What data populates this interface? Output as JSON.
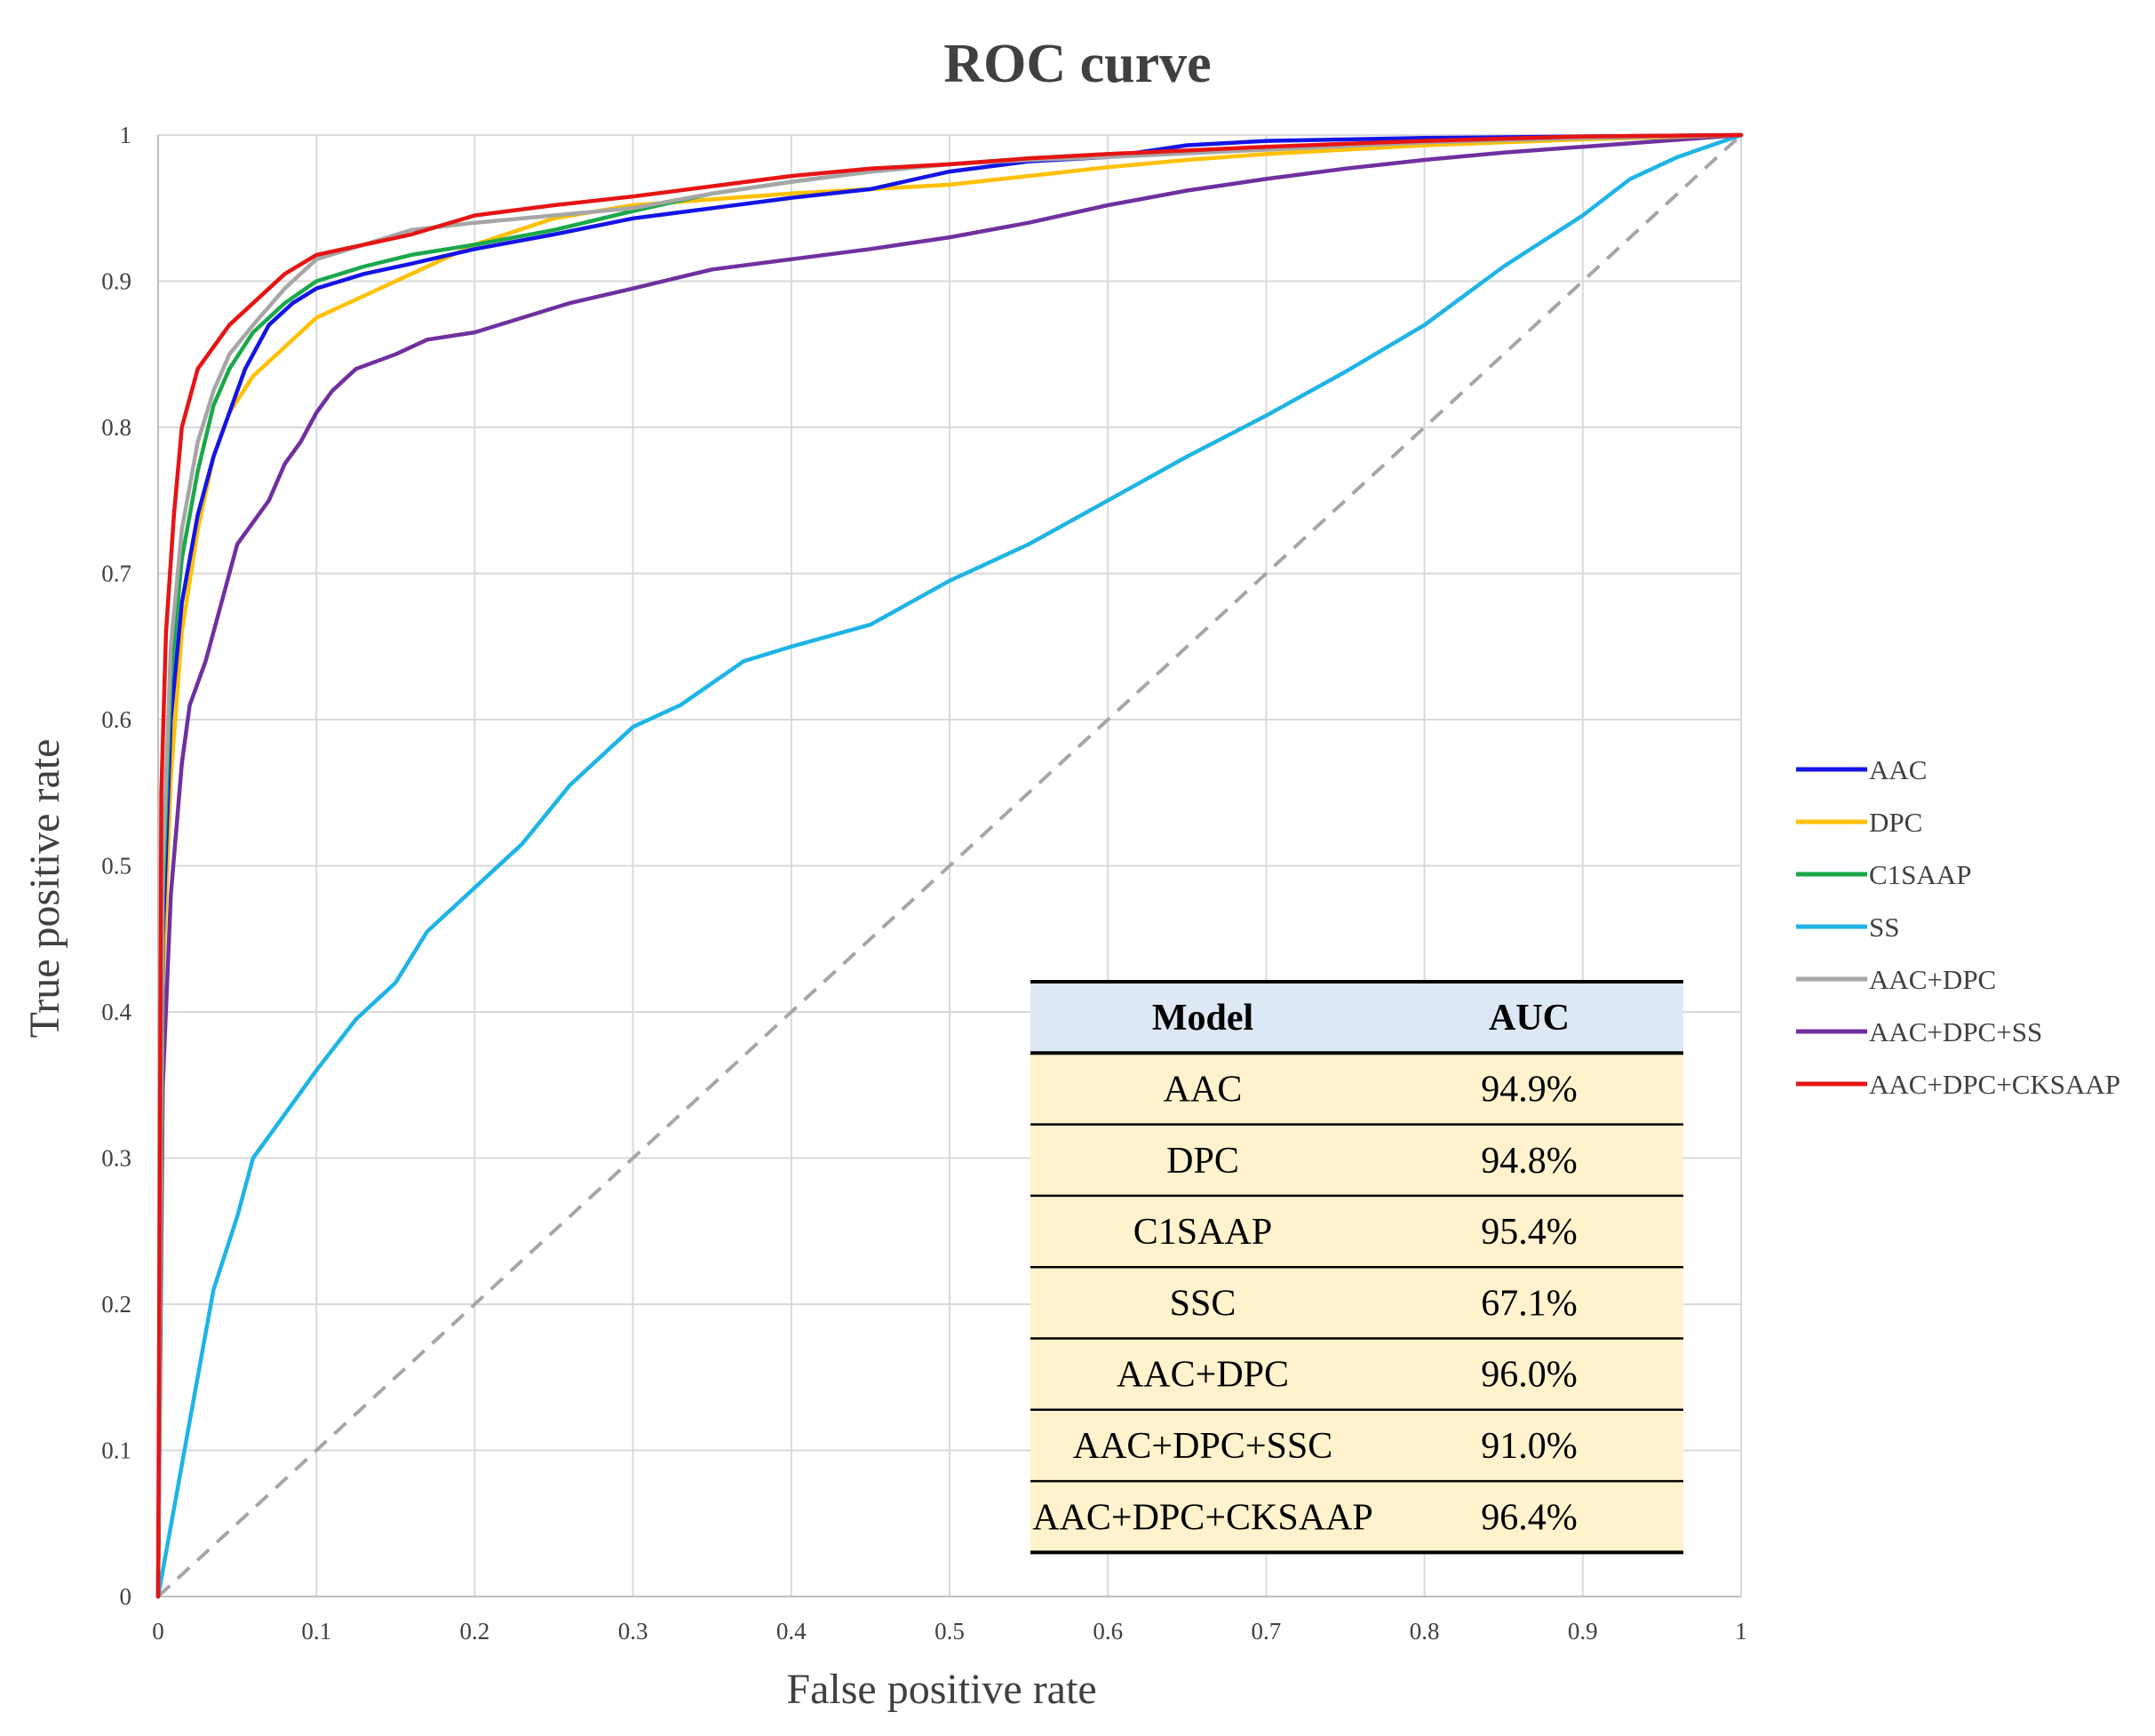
{
  "chart_data": {
    "type": "line",
    "title": "ROC curve",
    "xlabel": "False positive rate",
    "ylabel": "True positive rate",
    "xlim": [
      0,
      1
    ],
    "ylim": [
      0,
      1
    ],
    "grid": true,
    "legend_position": "right",
    "x_ticks": [
      "0",
      "0.1",
      "0.2",
      "0.3",
      "0.4",
      "0.5",
      "0.6",
      "0.7",
      "0.8",
      "0.9",
      "1"
    ],
    "y_ticks": [
      "0",
      "0.1",
      "0.2",
      "0.3",
      "0.4",
      "0.5",
      "0.6",
      "0.7",
      "0.8",
      "0.9",
      "1"
    ],
    "series": [
      {
        "name": "AAC",
        "color": "#1414e6",
        "points": [
          [
            0,
            0
          ],
          [
            0.003,
            0.45
          ],
          [
            0.008,
            0.6
          ],
          [
            0.015,
            0.68
          ],
          [
            0.025,
            0.74
          ],
          [
            0.035,
            0.78
          ],
          [
            0.045,
            0.81
          ],
          [
            0.055,
            0.84
          ],
          [
            0.07,
            0.87
          ],
          [
            0.085,
            0.885
          ],
          [
            0.1,
            0.895
          ],
          [
            0.13,
            0.905
          ],
          [
            0.16,
            0.912
          ],
          [
            0.2,
            0.922
          ],
          [
            0.25,
            0.932
          ],
          [
            0.3,
            0.943
          ],
          [
            0.35,
            0.95
          ],
          [
            0.4,
            0.957
          ],
          [
            0.45,
            0.963
          ],
          [
            0.5,
            0.975
          ],
          [
            0.55,
            0.982
          ],
          [
            0.6,
            0.985
          ],
          [
            0.65,
            0.993
          ],
          [
            0.7,
            0.996
          ],
          [
            0.8,
            0.998
          ],
          [
            0.9,
            0.999
          ],
          [
            1,
            1
          ]
        ]
      },
      {
        "name": "DPC",
        "color": "#ffc000",
        "points": [
          [
            0,
            0
          ],
          [
            0.003,
            0.42
          ],
          [
            0.008,
            0.56
          ],
          [
            0.015,
            0.66
          ],
          [
            0.025,
            0.73
          ],
          [
            0.035,
            0.78
          ],
          [
            0.045,
            0.81
          ],
          [
            0.06,
            0.835
          ],
          [
            0.08,
            0.855
          ],
          [
            0.1,
            0.875
          ],
          [
            0.13,
            0.89
          ],
          [
            0.16,
            0.905
          ],
          [
            0.2,
            0.925
          ],
          [
            0.25,
            0.943
          ],
          [
            0.3,
            0.952
          ],
          [
            0.35,
            0.956
          ],
          [
            0.4,
            0.96
          ],
          [
            0.45,
            0.963
          ],
          [
            0.5,
            0.966
          ],
          [
            0.55,
            0.972
          ],
          [
            0.6,
            0.978
          ],
          [
            0.65,
            0.983
          ],
          [
            0.7,
            0.987
          ],
          [
            0.8,
            0.993
          ],
          [
            0.9,
            0.997
          ],
          [
            1,
            1
          ]
        ]
      },
      {
        "name": "C1SAAP",
        "color": "#1aa84a",
        "points": [
          [
            0,
            0
          ],
          [
            0.003,
            0.48
          ],
          [
            0.008,
            0.63
          ],
          [
            0.015,
            0.71
          ],
          [
            0.025,
            0.77
          ],
          [
            0.035,
            0.815
          ],
          [
            0.045,
            0.84
          ],
          [
            0.06,
            0.865
          ],
          [
            0.08,
            0.885
          ],
          [
            0.1,
            0.9
          ],
          [
            0.13,
            0.91
          ],
          [
            0.16,
            0.918
          ],
          [
            0.2,
            0.925
          ],
          [
            0.25,
            0.935
          ],
          [
            0.3,
            0.948
          ],
          [
            0.35,
            0.96
          ],
          [
            0.4,
            0.968
          ],
          [
            0.45,
            0.975
          ],
          [
            0.5,
            0.98
          ],
          [
            0.55,
            0.984
          ],
          [
            0.6,
            0.987
          ],
          [
            0.7,
            0.991
          ],
          [
            0.8,
            0.996
          ],
          [
            0.9,
            0.998
          ],
          [
            1,
            1
          ]
        ]
      },
      {
        "name": "SS",
        "color": "#1eb4e6",
        "points": [
          [
            0,
            0
          ],
          [
            0.02,
            0.12
          ],
          [
            0.035,
            0.21
          ],
          [
            0.05,
            0.26
          ],
          [
            0.06,
            0.3
          ],
          [
            0.08,
            0.33
          ],
          [
            0.1,
            0.36
          ],
          [
            0.125,
            0.395
          ],
          [
            0.15,
            0.42
          ],
          [
            0.17,
            0.455
          ],
          [
            0.2,
            0.485
          ],
          [
            0.23,
            0.515
          ],
          [
            0.26,
            0.555
          ],
          [
            0.3,
            0.595
          ],
          [
            0.33,
            0.61
          ],
          [
            0.37,
            0.64
          ],
          [
            0.4,
            0.65
          ],
          [
            0.45,
            0.665
          ],
          [
            0.5,
            0.695
          ],
          [
            0.55,
            0.72
          ],
          [
            0.6,
            0.75
          ],
          [
            0.65,
            0.78
          ],
          [
            0.7,
            0.808
          ],
          [
            0.75,
            0.838
          ],
          [
            0.8,
            0.87
          ],
          [
            0.85,
            0.91
          ],
          [
            0.9,
            0.945
          ],
          [
            0.93,
            0.97
          ],
          [
            0.96,
            0.985
          ],
          [
            1,
            1
          ]
        ]
      },
      {
        "name": "AAC+DPC",
        "color": "#a6a6a6",
        "points": [
          [
            0,
            0
          ],
          [
            0.003,
            0.5
          ],
          [
            0.008,
            0.65
          ],
          [
            0.015,
            0.73
          ],
          [
            0.025,
            0.79
          ],
          [
            0.035,
            0.825
          ],
          [
            0.045,
            0.85
          ],
          [
            0.06,
            0.87
          ],
          [
            0.08,
            0.895
          ],
          [
            0.1,
            0.915
          ],
          [
            0.13,
            0.925
          ],
          [
            0.16,
            0.935
          ],
          [
            0.2,
            0.94
          ],
          [
            0.25,
            0.945
          ],
          [
            0.3,
            0.95
          ],
          [
            0.35,
            0.96
          ],
          [
            0.4,
            0.968
          ],
          [
            0.45,
            0.975
          ],
          [
            0.5,
            0.98
          ],
          [
            0.55,
            0.983
          ],
          [
            0.6,
            0.985
          ],
          [
            0.7,
            0.99
          ],
          [
            0.8,
            0.995
          ],
          [
            0.9,
            0.998
          ],
          [
            1,
            1
          ]
        ]
      },
      {
        "name": "AAC+DPC+SS",
        "color": "#7030a0",
        "points": [
          [
            0,
            0
          ],
          [
            0.003,
            0.35
          ],
          [
            0.008,
            0.48
          ],
          [
            0.015,
            0.57
          ],
          [
            0.02,
            0.61
          ],
          [
            0.03,
            0.64
          ],
          [
            0.04,
            0.68
          ],
          [
            0.05,
            0.72
          ],
          [
            0.06,
            0.735
          ],
          [
            0.07,
            0.75
          ],
          [
            0.08,
            0.775
          ],
          [
            0.09,
            0.79
          ],
          [
            0.1,
            0.81
          ],
          [
            0.11,
            0.825
          ],
          [
            0.125,
            0.84
          ],
          [
            0.15,
            0.85
          ],
          [
            0.17,
            0.86
          ],
          [
            0.2,
            0.865
          ],
          [
            0.23,
            0.875
          ],
          [
            0.26,
            0.885
          ],
          [
            0.3,
            0.895
          ],
          [
            0.35,
            0.908
          ],
          [
            0.4,
            0.915
          ],
          [
            0.45,
            0.922
          ],
          [
            0.5,
            0.93
          ],
          [
            0.55,
            0.94
          ],
          [
            0.6,
            0.952
          ],
          [
            0.65,
            0.962
          ],
          [
            0.7,
            0.97
          ],
          [
            0.75,
            0.977
          ],
          [
            0.8,
            0.983
          ],
          [
            0.85,
            0.988
          ],
          [
            0.9,
            0.992
          ],
          [
            0.95,
            0.996
          ],
          [
            1,
            1
          ]
        ]
      },
      {
        "name": "AAC+DPC+CKSAAP",
        "color": "#e61414",
        "points": [
          [
            0,
            0
          ],
          [
            0.002,
            0.55
          ],
          [
            0.005,
            0.66
          ],
          [
            0.01,
            0.74
          ],
          [
            0.015,
            0.8
          ],
          [
            0.025,
            0.84
          ],
          [
            0.035,
            0.855
          ],
          [
            0.045,
            0.87
          ],
          [
            0.06,
            0.885
          ],
          [
            0.08,
            0.905
          ],
          [
            0.1,
            0.918
          ],
          [
            0.13,
            0.925
          ],
          [
            0.16,
            0.932
          ],
          [
            0.2,
            0.945
          ],
          [
            0.25,
            0.952
          ],
          [
            0.3,
            0.958
          ],
          [
            0.35,
            0.965
          ],
          [
            0.4,
            0.972
          ],
          [
            0.45,
            0.977
          ],
          [
            0.5,
            0.98
          ],
          [
            0.55,
            0.984
          ],
          [
            0.6,
            0.987
          ],
          [
            0.7,
            0.992
          ],
          [
            0.8,
            0.996
          ],
          [
            0.9,
            0.999
          ],
          [
            1,
            1
          ]
        ]
      }
    ],
    "reference_line": {
      "name": "diagonal",
      "color": "#a6a6a6",
      "points": [
        [
          0,
          0
        ],
        [
          1,
          1
        ]
      ]
    },
    "auc_table": {
      "headers": [
        "Model",
        "AUC"
      ],
      "rows": [
        [
          "AAC",
          "94.9%"
        ],
        [
          "DPC",
          "94.8%"
        ],
        [
          "C1SAAP",
          "95.4%"
        ],
        [
          "SSC",
          "67.1%"
        ],
        [
          "AAC+DPC",
          "96.0%"
        ],
        [
          "AAC+DPC+SSC",
          "91.0%"
        ],
        [
          "AAC+DPC+CKSAAP",
          "96.4%"
        ]
      ],
      "header_bg": "#dde8f5",
      "row_bg": "#fff2cc"
    }
  }
}
